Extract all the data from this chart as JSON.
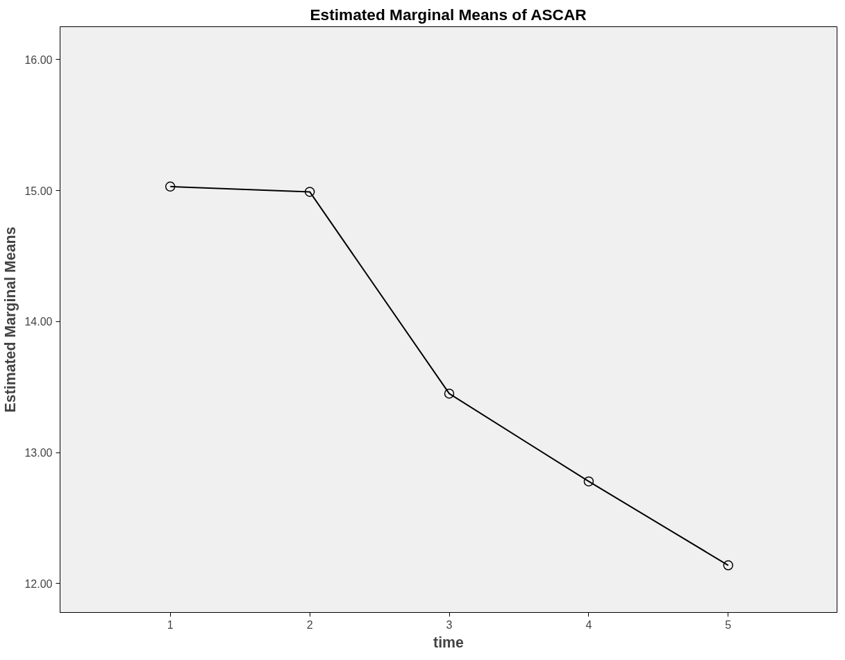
{
  "chart_data": {
    "type": "line",
    "title": "Estimated Marginal Means of ASCAR",
    "xlabel": "time",
    "ylabel": "Estimated Marginal Means",
    "x": [
      1,
      2,
      3,
      4,
      5
    ],
    "series": [
      {
        "color": "#000000",
        "values": [
          15.03,
          14.99,
          13.45,
          12.78,
          12.14
        ]
      }
    ],
    "xlim": [
      0.21,
      5.78
    ],
    "xticks": [
      1,
      2,
      3,
      4,
      5
    ],
    "ylim": [
      11.78,
      16.25
    ],
    "yticks": [
      {
        "value": 12,
        "label": "12.00"
      },
      {
        "value": 13,
        "label": "13.00"
      },
      {
        "value": 14,
        "label": "14.00"
      },
      {
        "value": 15,
        "label": "15.00"
      },
      {
        "value": 16,
        "label": "16.00"
      }
    ],
    "marker": "circle",
    "line_style": "solid",
    "grid": false
  }
}
